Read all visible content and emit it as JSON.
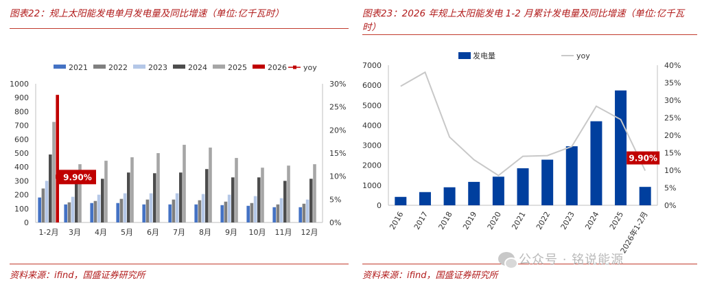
{
  "left": {
    "title": "图表22：规上太阳能发电单月发电量及同比增速（单位:亿千瓦时）",
    "source": "资料来源：ifind，国盛证券研究所",
    "chart_data": {
      "type": "bar",
      "categories": [
        "1-2月",
        "3月",
        "4月",
        "5月",
        "6月",
        "7月",
        "8月",
        "9月",
        "10月",
        "11月",
        "12月"
      ],
      "series": [
        {
          "name": "2021",
          "color": "#4472c4",
          "values": [
            180,
            130,
            140,
            140,
            130,
            130,
            130,
            125,
            120,
            110,
            110
          ]
        },
        {
          "name": "2022",
          "color": "#7f7f7f",
          "values": [
            245,
            145,
            155,
            170,
            165,
            165,
            160,
            150,
            140,
            130,
            135
          ]
        },
        {
          "name": "2023",
          "color": "#b4c7e7",
          "values": [
            300,
            185,
            200,
            210,
            210,
            210,
            205,
            200,
            190,
            175,
            165
          ]
        },
        {
          "name": "2024",
          "color": "#4d4d4d",
          "values": [
            490,
            305,
            315,
            360,
            355,
            360,
            385,
            325,
            325,
            300,
            315
          ]
        },
        {
          "name": "2025",
          "color": "#a6a6a6",
          "values": [
            725,
            420,
            445,
            470,
            500,
            560,
            540,
            465,
            395,
            410,
            420
          ]
        },
        {
          "name": "2026",
          "color": "#c00000",
          "values": [
            920,
            null,
            null,
            null,
            null,
            null,
            null,
            null,
            null,
            null,
            null
          ]
        }
      ],
      "yoy": {
        "name": "yoy",
        "color": "#c00000",
        "values": [
          0.099,
          null,
          null,
          null,
          null,
          null,
          null,
          null,
          null,
          null,
          null
        ]
      },
      "ylim": [
        0,
        1000
      ],
      "y_ticks": [
        "0",
        "100",
        "200",
        "300",
        "400",
        "500",
        "600",
        "700",
        "800",
        "900",
        "1000"
      ],
      "y2lim": [
        0,
        0.3
      ],
      "y2_ticks": [
        "0%",
        "5%",
        "10%",
        "15%",
        "20%",
        "25%",
        "30%"
      ],
      "annotation": "9.90%",
      "legend": "top"
    }
  },
  "right": {
    "title": "图表23：2026 年规上太阳能发电 1-2 月累计发电量及同比增速（单位:亿千瓦时）",
    "source": "资料来源：ifind，国盛证券研究所",
    "chart_data": {
      "type": "bar",
      "categories": [
        "2016",
        "2017",
        "2018",
        "2019",
        "2020",
        "2021",
        "2022",
        "2023",
        "2024",
        "2025",
        "2026年1-2月"
      ],
      "series": [
        {
          "name": "发电量",
          "color": "#003f9e",
          "values": [
            420,
            660,
            900,
            1170,
            1430,
            1850,
            2280,
            2950,
            4200,
            5740,
            920
          ]
        }
      ],
      "yoy": {
        "name": "yoy",
        "color": "#c8c8c8",
        "values": [
          0.34,
          0.38,
          0.195,
          0.13,
          0.085,
          0.14,
          0.142,
          0.168,
          0.283,
          0.245,
          0.099
        ]
      },
      "ylim": [
        0,
        7000
      ],
      "y_ticks": [
        "0",
        "1000",
        "2000",
        "3000",
        "4000",
        "5000",
        "6000",
        "7000"
      ],
      "y2lim": [
        0,
        0.4
      ],
      "y2_ticks": [
        "0%",
        "5%",
        "10%",
        "15%",
        "20%",
        "25%",
        "30%",
        "35%",
        "40%"
      ],
      "annotation": "9.90%",
      "legend": "top"
    }
  },
  "watermark": "公众号 · 铭说能源"
}
